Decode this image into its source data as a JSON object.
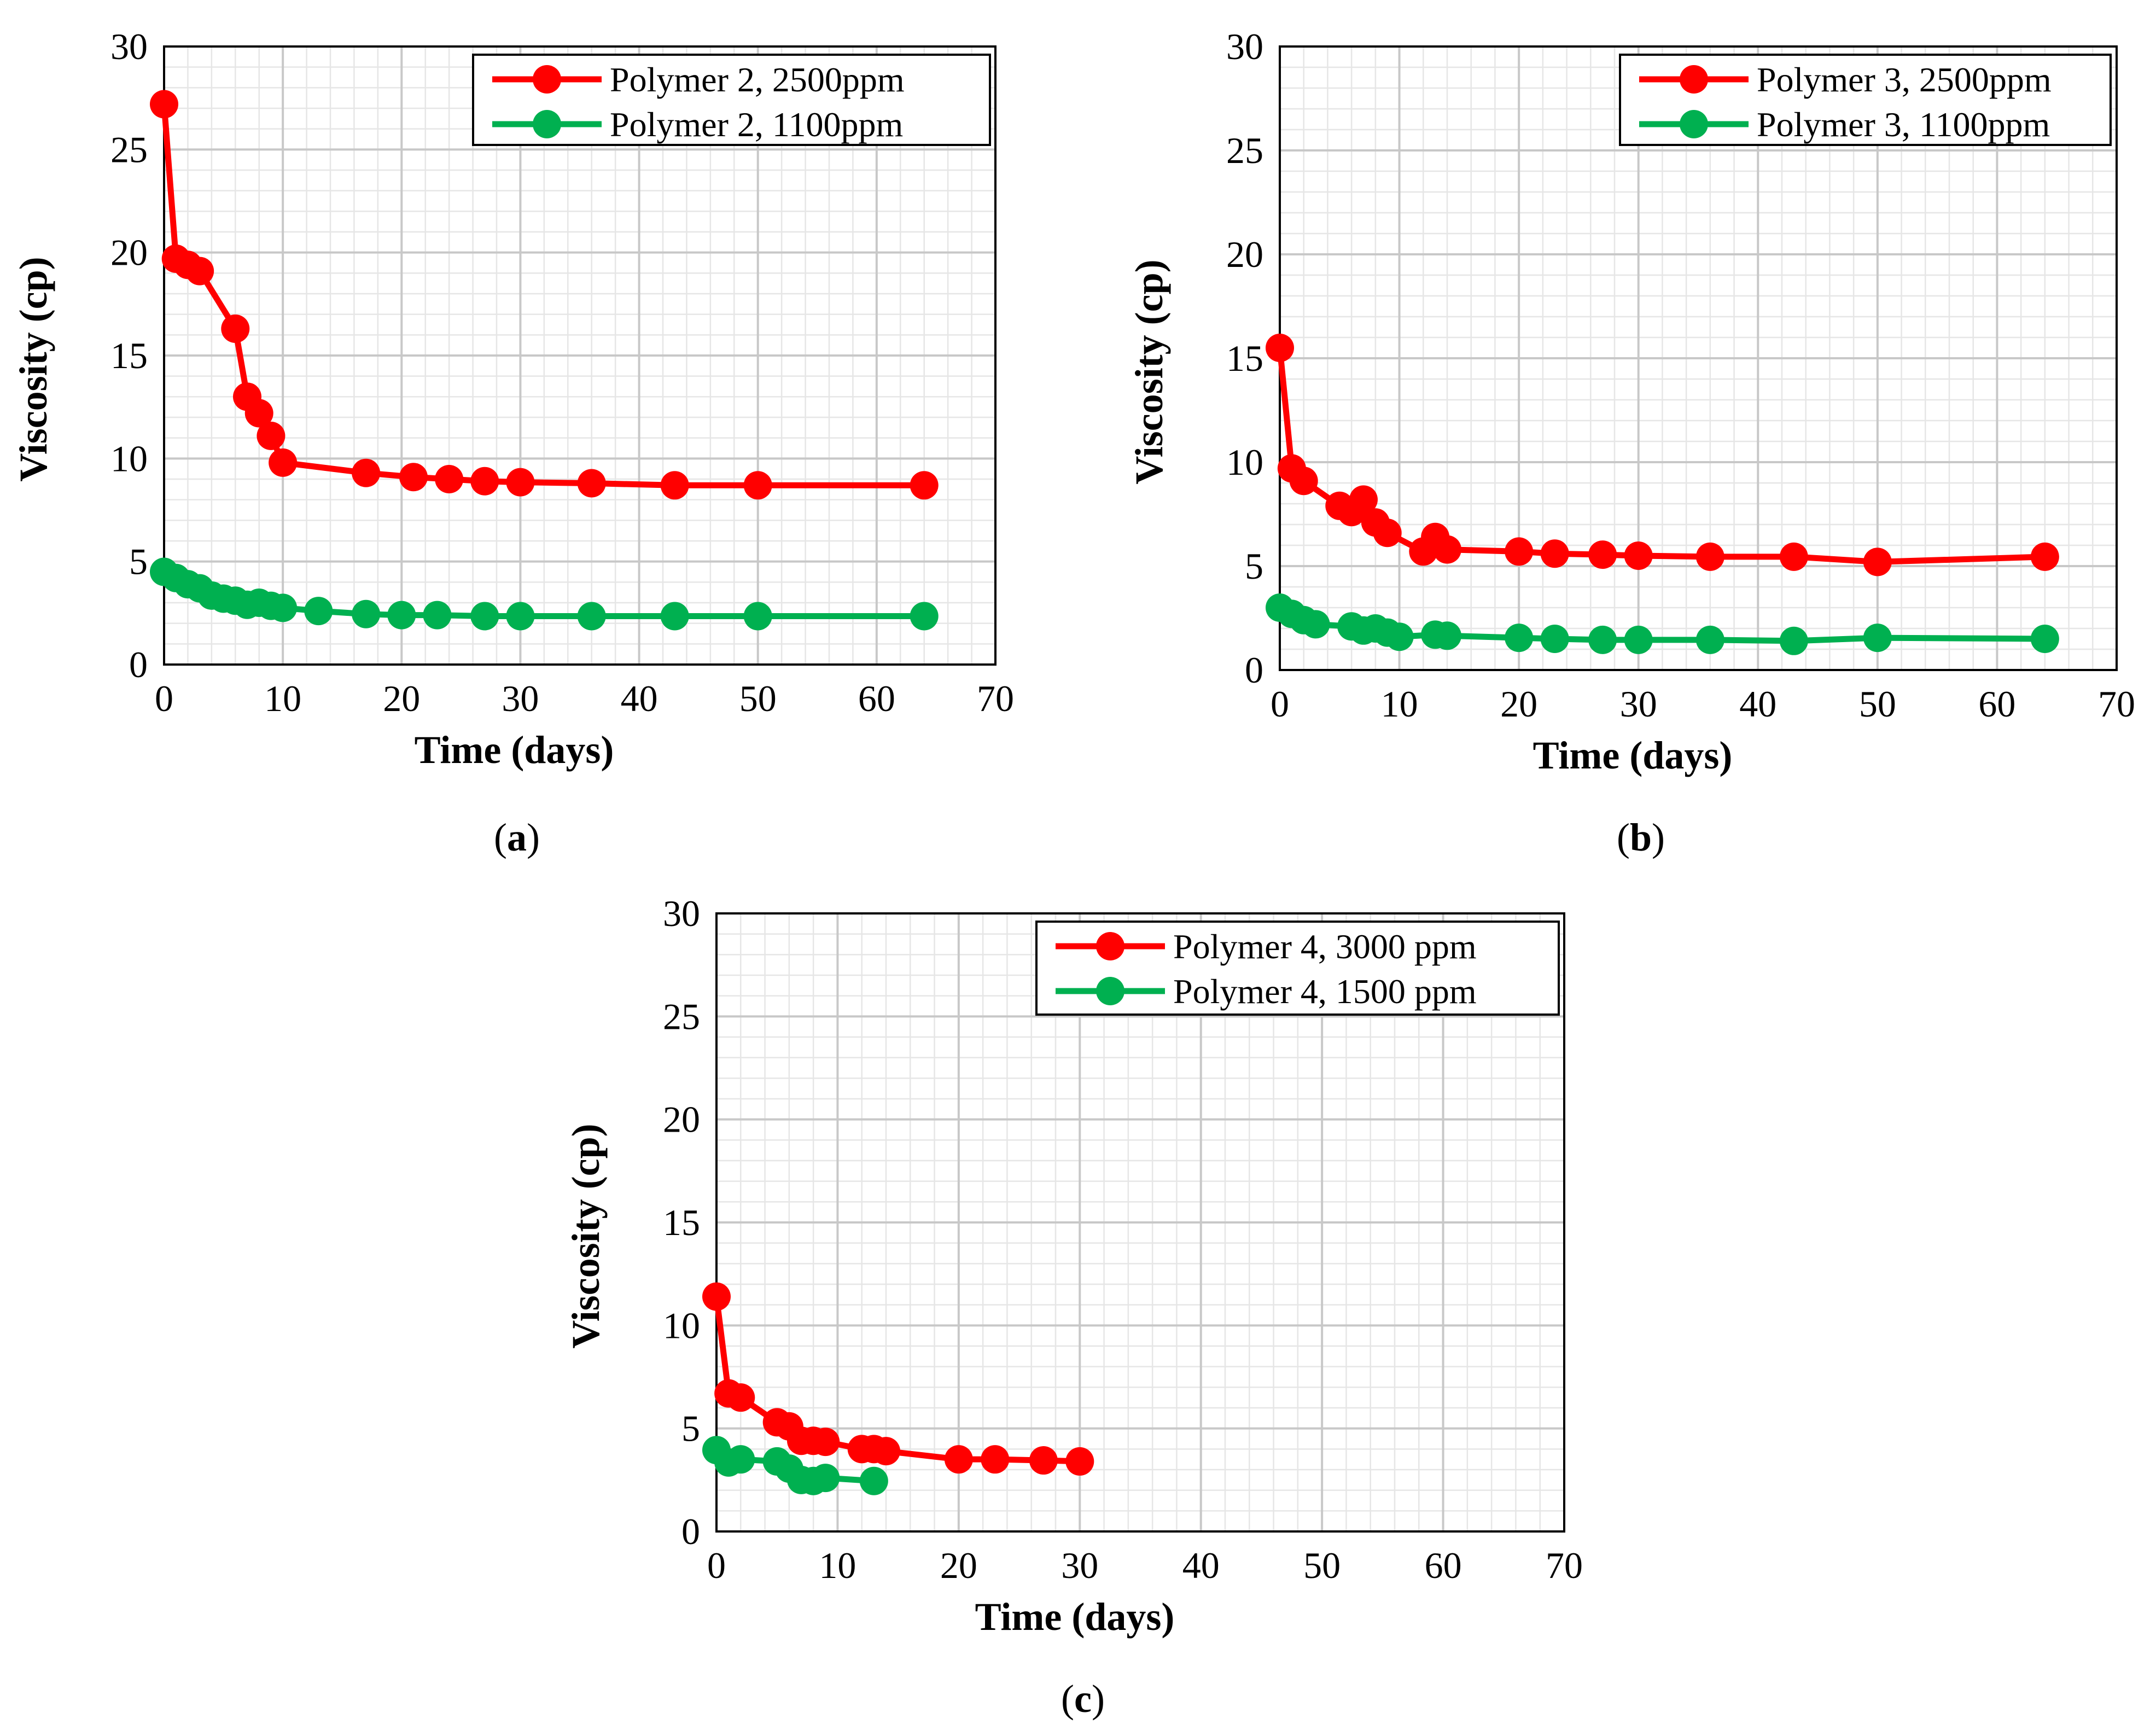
{
  "figure": {
    "colors": {
      "red": "#ff0000",
      "green": "#00b050"
    }
  },
  "chart_data": [
    {
      "panel": "a",
      "panel_label": {
        "open": "(",
        "letter": "a",
        "close": ")"
      },
      "type": "line",
      "xlabel": "Time (days)",
      "ylabel": "Viscosity (cp)",
      "xlim": [
        0,
        70
      ],
      "ylim": [
        0,
        30
      ],
      "xticks": [
        0,
        10,
        20,
        30,
        40,
        50,
        60,
        70
      ],
      "yticks": [
        0,
        5,
        10,
        15,
        20,
        25,
        30
      ],
      "legend_position": "top-right",
      "series": [
        {
          "name": "Polymer 2, 2500ppm",
          "color": "#ff0000",
          "x": [
            0,
            1,
            2,
            3,
            6,
            7,
            8,
            9,
            10,
            17,
            21,
            24,
            27,
            30,
            36,
            43,
            50,
            64
          ],
          "y": [
            27.2,
            19.7,
            19.4,
            19.1,
            16.3,
            13.0,
            12.2,
            11.1,
            9.8,
            9.3,
            9.1,
            9.0,
            8.9,
            8.85,
            8.8,
            8.7,
            8.7,
            8.7
          ]
        },
        {
          "name": "Polymer 2, 1100ppm",
          "color": "#00b050",
          "x": [
            0,
            1,
            2,
            3,
            4,
            5,
            6,
            7,
            8,
            9,
            10,
            13,
            17,
            20,
            23,
            27,
            30,
            36,
            43,
            50,
            64
          ],
          "y": [
            4.5,
            4.2,
            3.9,
            3.7,
            3.35,
            3.2,
            3.1,
            2.9,
            3.0,
            2.85,
            2.75,
            2.6,
            2.45,
            2.4,
            2.4,
            2.35,
            2.35,
            2.35,
            2.35,
            2.35,
            2.35
          ]
        }
      ]
    },
    {
      "panel": "b",
      "panel_label": {
        "open": "(",
        "letter": "b",
        "close": ")"
      },
      "type": "line",
      "xlabel": "Time (days)",
      "ylabel": "Viscosity (cp)",
      "xlim": [
        0,
        70
      ],
      "ylim": [
        0,
        30
      ],
      "xticks": [
        0,
        10,
        20,
        30,
        40,
        50,
        60,
        70
      ],
      "yticks": [
        0,
        5,
        10,
        15,
        20,
        25,
        30
      ],
      "legend_position": "top-right",
      "series": [
        {
          "name": "Polymer 3, 2500ppm",
          "color": "#ff0000",
          "x": [
            0,
            1,
            2,
            5,
            6,
            7,
            8,
            9,
            12,
            13,
            14,
            20,
            23,
            27,
            30,
            36,
            43,
            50,
            64
          ],
          "y": [
            15.5,
            9.7,
            9.1,
            7.9,
            7.6,
            8.2,
            7.1,
            6.6,
            5.7,
            6.4,
            5.8,
            5.7,
            5.6,
            5.55,
            5.5,
            5.45,
            5.45,
            5.2,
            5.45
          ]
        },
        {
          "name": "Polymer 3, 1100ppm",
          "color": "#00b050",
          "x": [
            0,
            1,
            2,
            3,
            6,
            7,
            8,
            9,
            10,
            13,
            14,
            20,
            23,
            27,
            30,
            36,
            43,
            50,
            64
          ],
          "y": [
            3.0,
            2.7,
            2.4,
            2.2,
            2.1,
            1.9,
            2.0,
            1.8,
            1.6,
            1.7,
            1.65,
            1.55,
            1.5,
            1.45,
            1.45,
            1.45,
            1.4,
            1.55,
            1.5
          ]
        }
      ]
    },
    {
      "panel": "c",
      "panel_label": {
        "open": "(",
        "letter": "c",
        "close": ")"
      },
      "type": "line",
      "xlabel": "Time (days)",
      "ylabel": "Viscosity (cp)",
      "xlim": [
        0,
        70
      ],
      "ylim": [
        0,
        30
      ],
      "xticks": [
        0,
        10,
        20,
        30,
        40,
        50,
        60,
        70
      ],
      "yticks": [
        0,
        5,
        10,
        15,
        20,
        25,
        30
      ],
      "legend_position": "top-right",
      "series": [
        {
          "name": "Polymer 4, 3000 ppm",
          "color": "#ff0000",
          "x": [
            0,
            1,
            2,
            5,
            6,
            7,
            8,
            9,
            12,
            13,
            14,
            20,
            23,
            27,
            30
          ],
          "y": [
            11.4,
            6.7,
            6.5,
            5.3,
            5.1,
            4.4,
            4.4,
            4.35,
            4.0,
            4.0,
            3.9,
            3.5,
            3.5,
            3.45,
            3.4
          ]
        },
        {
          "name": "Polymer 4, 1500 ppm",
          "color": "#00b050",
          "x": [
            0,
            1,
            2,
            5,
            6,
            7,
            8,
            9,
            13
          ],
          "y": [
            3.95,
            3.35,
            3.5,
            3.4,
            3.05,
            2.5,
            2.45,
            2.6,
            2.45
          ]
        }
      ]
    }
  ]
}
